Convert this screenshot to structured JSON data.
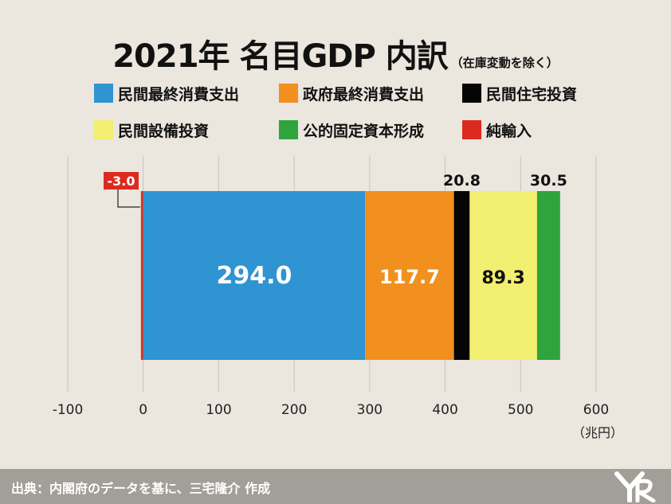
{
  "title": "2021年 名目GDP 内訳",
  "subtitle": "（在庫変動を除く）",
  "legend": [
    {
      "label": "民間最終消費支出",
      "color": "#2f94d2"
    },
    {
      "label": "政府最終消費支出",
      "color": "#f1901f"
    },
    {
      "label": "民間住宅投資",
      "color": "#050505"
    },
    {
      "label": "民間設備投資",
      "color": "#f2ee70"
    },
    {
      "label": "公的固定資本形成",
      "color": "#2fa33c"
    },
    {
      "label": "純輸入",
      "color": "#dc2a1e"
    }
  ],
  "source": "出典：内閣府のデータを基に、三宅隆介 作成",
  "chart_data": {
    "type": "bar",
    "orientation": "horizontal-stacked",
    "title": "2021年 名目GDP 内訳",
    "subtitle": "（在庫変動を除く）",
    "xunit": "（兆円）",
    "xlim": [
      -100,
      600
    ],
    "xticks": [
      "-100",
      "0",
      "100",
      "200",
      "300",
      "400",
      "500",
      "600"
    ],
    "grid": "vertical",
    "legend_position": "top",
    "series": [
      {
        "name": "純輸入",
        "value": -3.0,
        "label": "-3.0",
        "color": "#dc2a1e",
        "label_pos": "callout",
        "label_color": "#ffffff",
        "label_bg": "#dc2a1e"
      },
      {
        "name": "民間最終消費支出",
        "value": 294.0,
        "label": "294.0",
        "color": "#2f94d2",
        "label_pos": "inside",
        "label_color": "#ffffff"
      },
      {
        "name": "政府最終消費支出",
        "value": 117.7,
        "label": "117.7",
        "color": "#f1901f",
        "label_pos": "inside",
        "label_color": "#ffffff"
      },
      {
        "name": "民間住宅投資",
        "value": 20.8,
        "label": "20.8",
        "color": "#050505",
        "label_pos": "above",
        "label_color": "#111111"
      },
      {
        "name": "民間設備投資",
        "value": 89.3,
        "label": "89.3",
        "color": "#f2ee70",
        "label_pos": "inside",
        "label_color": "#111111"
      },
      {
        "name": "公的固定資本形成",
        "value": 30.5,
        "label": "30.5",
        "color": "#2fa33c",
        "label_pos": "above",
        "label_color": "#111111"
      }
    ]
  }
}
